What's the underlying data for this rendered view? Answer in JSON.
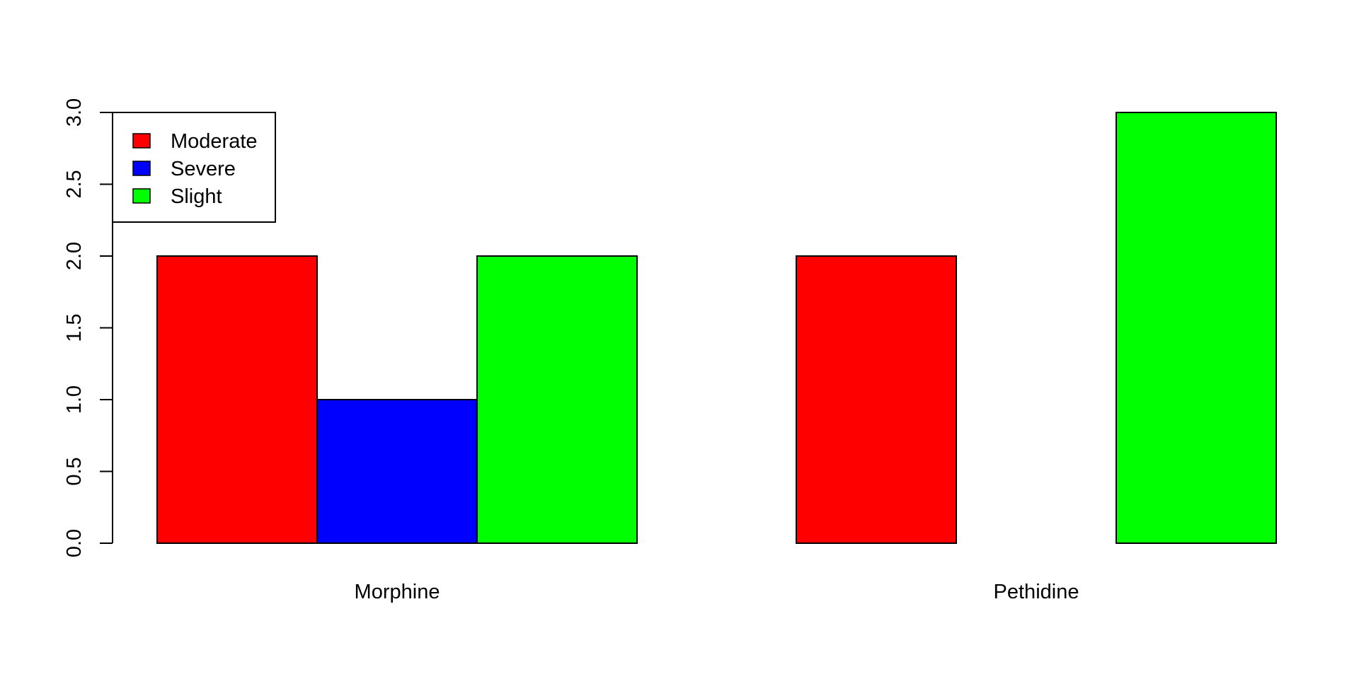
{
  "chart_data": {
    "type": "bar",
    "categories": [
      "Morphine",
      "Pethidine"
    ],
    "series": [
      {
        "name": "Moderate",
        "color": "#ff0000",
        "values": [
          2,
          2
        ]
      },
      {
        "name": "Severe",
        "color": "#0000ff",
        "values": [
          1,
          0
        ]
      },
      {
        "name": "Slight",
        "color": "#00ff00",
        "values": [
          2,
          3
        ]
      }
    ],
    "yticks": [
      "0.0",
      "0.5",
      "1.0",
      "1.5",
      "2.0",
      "2.5",
      "3.0"
    ],
    "ylim": [
      0,
      3
    ],
    "title": "",
    "xlabel": "",
    "ylabel": "",
    "grid": false,
    "legend_position": "top-left"
  }
}
